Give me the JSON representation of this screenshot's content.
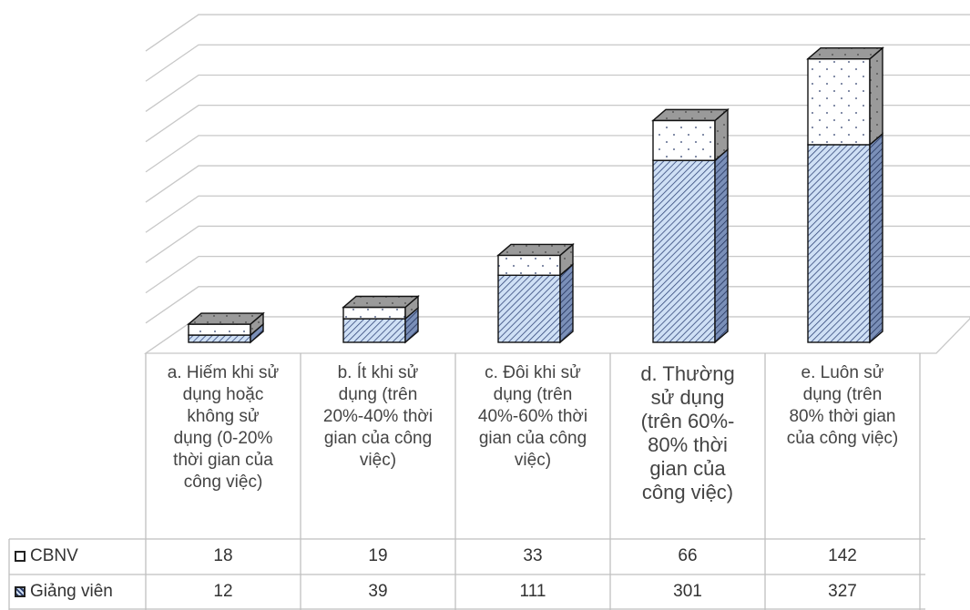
{
  "chart_data": {
    "type": "bar",
    "stacked": true,
    "three_d": true,
    "categories": [
      "a. Hiếm khi sử dụng hoặc không sử dụng (0-20% thời gian của công việc)",
      "b. Ít khi sử dụng (trên 20%-40% thời gian của công việc)",
      "c. Đôi khi sử dụng (trên 40%-60% thời gian của công việc)",
      "d. Thường sử dụng (trên 60%-80% thời gian của công việc)",
      "e. Luôn sử dụng (trên 80% thời gian của công việc)"
    ],
    "category_lines": [
      [
        "a. Hiếm khi sử",
        "dụng hoặc",
        "không sử",
        "dụng (0-20%",
        "thời gian của",
        "công việc)"
      ],
      [
        "b. Ít khi sử",
        "dụng (trên",
        "20%-40% thời",
        "gian của công",
        "việc)"
      ],
      [
        "c. Đôi khi sử",
        "dụng (trên",
        "40%-60% thời",
        "gian của công",
        "việc)"
      ],
      [
        "d. Thường",
        "sử dụng",
        "(trên 60%-",
        "80% thời",
        "gian của",
        "công việc)"
      ],
      [
        "e. Luôn sử",
        "dụng (trên",
        "80% thời gian",
        "của công việc)"
      ]
    ],
    "series": [
      {
        "name": "CBNV",
        "values": [
          18,
          19,
          33,
          66,
          142
        ],
        "color": "#ffffff",
        "pattern": "dots"
      },
      {
        "name": "Giảng viên",
        "values": [
          12,
          39,
          111,
          301,
          327
        ],
        "color": "#cfe0f5",
        "pattern": "diagonal-hatch"
      }
    ],
    "ylim": [
      0,
      500
    ],
    "grid": true,
    "legend": "data-table",
    "title": "",
    "xlabel": "",
    "ylabel": ""
  }
}
